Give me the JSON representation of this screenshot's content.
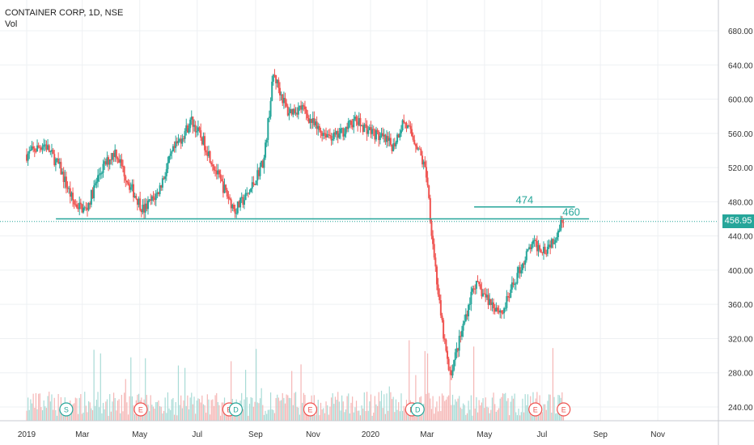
{
  "legend": {
    "symbol": "CONTAINER CORP, 1D, NSE",
    "volume": "Vol"
  },
  "last_price": {
    "label": "456.95",
    "value": 456.95
  },
  "colors": {
    "up": "#26a69a",
    "down": "#ef5350",
    "volume_up": "#a8dbd6",
    "volume_down": "#f5b6b5",
    "grid": "#eef0f3",
    "event": "#ef5350",
    "event_alt": "#26a69a"
  },
  "chart_data": {
    "type": "candlestick",
    "title": "",
    "y_axis": {
      "ticks": [
        680,
        640,
        600,
        560,
        520,
        480,
        440,
        400,
        360,
        320,
        280,
        240
      ],
      "tick_labels": [
        "680.00",
        "640.00",
        "600.00",
        "560.00",
        "520.00",
        "480.00",
        "440.00",
        "400.00",
        "360.00",
        "320.00",
        "280.00",
        "240.00"
      ],
      "position": "right"
    },
    "x_axis": {
      "tick_labels": [
        "2019",
        "Mar",
        "May",
        "Jul",
        "Sep",
        "Nov",
        "2020",
        "Mar",
        "May",
        "Jul",
        "Sep",
        "Nov"
      ],
      "tick_dates": [
        "2019-01-01",
        "2019-03-01",
        "2019-05-01",
        "2019-07-01",
        "2019-09-01",
        "2019-11-01",
        "2020-01-01",
        "2020-03-01",
        "2020-05-01",
        "2020-07-01",
        "2020-09-01",
        "2020-11-01"
      ]
    },
    "price_path": [
      {
        "date": "2019-01-01",
        "close": 535
      },
      {
        "date": "2019-01-20",
        "close": 548
      },
      {
        "date": "2019-02-05",
        "close": 520
      },
      {
        "date": "2019-02-20",
        "close": 478
      },
      {
        "date": "2019-03-05",
        "close": 470
      },
      {
        "date": "2019-03-20",
        "close": 515
      },
      {
        "date": "2019-04-05",
        "close": 540
      },
      {
        "date": "2019-04-20",
        "close": 500
      },
      {
        "date": "2019-05-05",
        "close": 470
      },
      {
        "date": "2019-05-20",
        "close": 490
      },
      {
        "date": "2019-06-05",
        "close": 538
      },
      {
        "date": "2019-06-25",
        "close": 575
      },
      {
        "date": "2019-07-10",
        "close": 545
      },
      {
        "date": "2019-07-25",
        "close": 505
      },
      {
        "date": "2019-08-10",
        "close": 470
      },
      {
        "date": "2019-08-25",
        "close": 490
      },
      {
        "date": "2019-09-10",
        "close": 530
      },
      {
        "date": "2019-09-20",
        "close": 630
      },
      {
        "date": "2019-10-05",
        "close": 585
      },
      {
        "date": "2019-10-20",
        "close": 590
      },
      {
        "date": "2019-11-05",
        "close": 565
      },
      {
        "date": "2019-11-25",
        "close": 555
      },
      {
        "date": "2019-12-15",
        "close": 575
      },
      {
        "date": "2020-01-05",
        "close": 560
      },
      {
        "date": "2020-01-25",
        "close": 545
      },
      {
        "date": "2020-02-05",
        "close": 575
      },
      {
        "date": "2020-02-20",
        "close": 545
      },
      {
        "date": "2020-03-01",
        "close": 510
      },
      {
        "date": "2020-03-05",
        "close": 455
      },
      {
        "date": "2020-03-15",
        "close": 350
      },
      {
        "date": "2020-03-25",
        "close": 275
      },
      {
        "date": "2020-04-05",
        "close": 320
      },
      {
        "date": "2020-04-20",
        "close": 385
      },
      {
        "date": "2020-05-05",
        "close": 365
      },
      {
        "date": "2020-05-20",
        "close": 350
      },
      {
        "date": "2020-06-05",
        "close": 395
      },
      {
        "date": "2020-06-20",
        "close": 430
      },
      {
        "date": "2020-07-05",
        "close": 425
      },
      {
        "date": "2020-07-15",
        "close": 440
      },
      {
        "date": "2020-07-25",
        "close": 465
      }
    ],
    "annotations": [
      {
        "label": "474",
        "type": "horizontal-segment",
        "value": 474,
        "from": "2020-04-20",
        "to": "2020-08-05"
      },
      {
        "label": "460",
        "type": "horizontal-line",
        "value": 460,
        "from": "2019-02-01",
        "to": "2020-08-20"
      }
    ],
    "events": [
      {
        "letter": "S",
        "date": "2019-02-12",
        "color": "event_alt"
      },
      {
        "letter": "E",
        "date": "2019-05-02",
        "color": "event"
      },
      {
        "letter": "E",
        "date": "2019-08-04",
        "color": "event"
      },
      {
        "letter": "D",
        "date": "2019-08-11",
        "color": "event_alt"
      },
      {
        "letter": "E",
        "date": "2019-10-29",
        "color": "event"
      },
      {
        "letter": "E",
        "date": "2020-02-14",
        "color": "event"
      },
      {
        "letter": "D",
        "date": "2020-02-20",
        "color": "event_alt"
      },
      {
        "letter": "E",
        "date": "2020-06-24",
        "color": "event"
      },
      {
        "letter": "E",
        "date": "2020-07-24",
        "color": "event"
      }
    ],
    "grid": true,
    "volume": true
  }
}
